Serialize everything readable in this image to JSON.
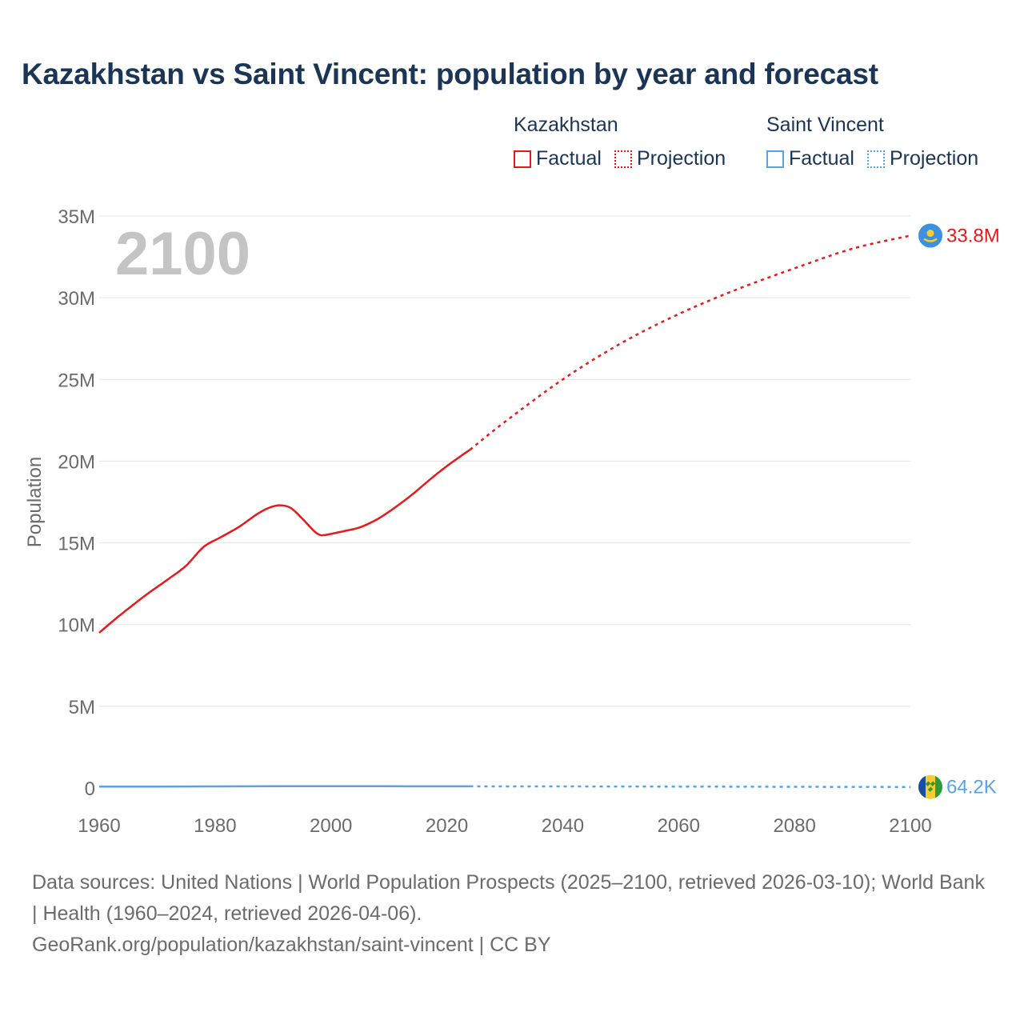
{
  "title": "Kazakhstan vs Saint Vincent: population by year and forecast",
  "legend": {
    "groups": [
      {
        "name": "Kazakhstan",
        "factual": "Factual",
        "projection": "Projection",
        "color": "#e8191d"
      },
      {
        "name": "Saint Vincent",
        "factual": "Factual",
        "projection": "Projection",
        "color": "#5aa2e8"
      }
    ]
  },
  "footer": {
    "sources": "Data sources: United Nations | World Population Prospects (2025–2100, retrieved 2026-03-10); World Bank | Health (1960–2024, retrieved 2026-04-06).",
    "credit": "GeoRank.org/population/kazakhstan/saint-vincent | CC BY"
  },
  "chart_data": {
    "type": "line",
    "title": "Kazakhstan vs Saint Vincent: population by year and forecast",
    "ylabel": "Population",
    "xlabel": "",
    "current_year_label": "2100",
    "xlim": [
      1960,
      2100
    ],
    "ylim": [
      0,
      35000000
    ],
    "x_ticks": [
      1960,
      1980,
      2000,
      2020,
      2040,
      2060,
      2080,
      2100
    ],
    "y_ticks": [
      {
        "value": 0,
        "label": "0"
      },
      {
        "value": 5000000,
        "label": "5M"
      },
      {
        "value": 10000000,
        "label": "10M"
      },
      {
        "value": 15000000,
        "label": "15M"
      },
      {
        "value": 20000000,
        "label": "20M"
      },
      {
        "value": 25000000,
        "label": "25M"
      },
      {
        "value": 30000000,
        "label": "30M"
      },
      {
        "value": 35000000,
        "label": "35M"
      }
    ],
    "grid": true,
    "series": [
      {
        "name": "Kazakhstan",
        "color": "#e8191d",
        "end_label": "33.8M",
        "factual": {
          "x": [
            1960,
            1963,
            1966,
            1969,
            1972,
            1975,
            1978,
            1981,
            1984,
            1987,
            1989,
            1991,
            1993,
            1995,
            1997,
            1998,
            1999,
            2002,
            2005,
            2008,
            2011,
            2014,
            2017,
            2020,
            2024
          ],
          "y": [
            9500000,
            10400000,
            11250000,
            12050000,
            12800000,
            13600000,
            14750000,
            15350000,
            15950000,
            16700000,
            17100000,
            17300000,
            17150000,
            16500000,
            15750000,
            15500000,
            15480000,
            15700000,
            15950000,
            16450000,
            17150000,
            17950000,
            18850000,
            19700000,
            20700000
          ]
        },
        "projection": {
          "x": [
            2024,
            2030,
            2040,
            2050,
            2060,
            2070,
            2080,
            2090,
            2100
          ],
          "y": [
            20700000,
            22400000,
            25000000,
            27200000,
            29000000,
            30500000,
            31800000,
            33000000,
            33800000
          ]
        }
      },
      {
        "name": "Saint Vincent",
        "color": "#5aa2e8",
        "end_label": "64.2K",
        "factual": {
          "x": [
            1960,
            1970,
            1980,
            1990,
            2000,
            2010,
            2020,
            2024
          ],
          "y": [
            81000,
            87000,
            96000,
            107000,
            108000,
            107000,
            104000,
            101000
          ]
        },
        "projection": {
          "x": [
            2024,
            2040,
            2060,
            2080,
            2100
          ],
          "y": [
            101000,
            96000,
            86000,
            74000,
            64200
          ]
        }
      }
    ]
  }
}
